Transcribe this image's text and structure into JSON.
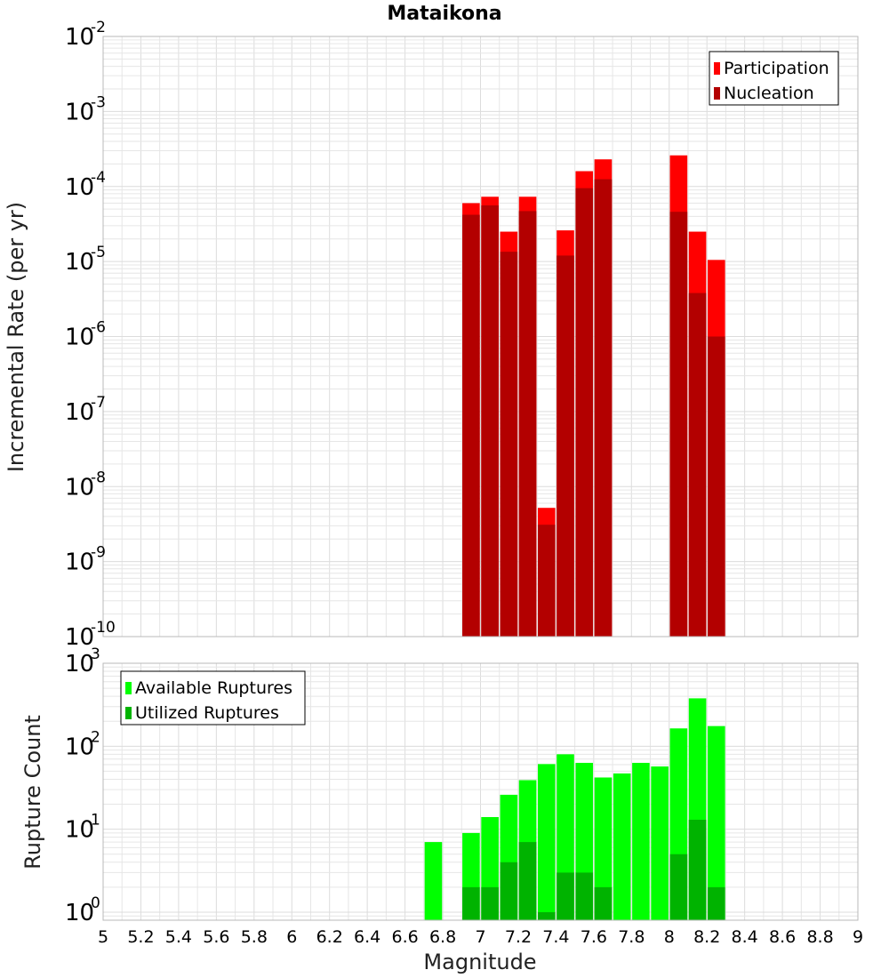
{
  "chart_data": [
    {
      "type": "bar",
      "title": "Mataikona",
      "xlabel": "",
      "ylabel": "Incremental Rate (per yr)",
      "yscale": "log",
      "ylim": [
        1e-10,
        0.01
      ],
      "xlim": [
        5,
        9
      ],
      "x": [
        6.95,
        7.05,
        7.15,
        7.25,
        7.35,
        7.45,
        7.55,
        7.65,
        8.05,
        8.15,
        8.25
      ],
      "series": [
        {
          "name": "Participation",
          "color": "#ff0000",
          "values": [
            6e-05,
            7.3e-05,
            2.5e-05,
            7.3e-05,
            5.2e-09,
            2.6e-05,
            0.00016,
            0.00023,
            0.00026,
            2.5e-05,
            1.05e-05
          ]
        },
        {
          "name": "Nucleation",
          "color": "#b30000",
          "values": [
            4.2e-05,
            5.6e-05,
            1.35e-05,
            4.7e-05,
            3.1e-09,
            1.2e-05,
            9.5e-05,
            0.000125,
            4.6e-05,
            3.8e-06,
            1e-06
          ]
        }
      ],
      "legend": "top-right",
      "grid": true
    },
    {
      "type": "bar",
      "xlabel": "Magnitude",
      "ylabel": "Rupture Count",
      "yscale": "log",
      "ylim": [
        0.8,
        1000
      ],
      "xlim": [
        5,
        9
      ],
      "x": [
        6.75,
        6.95,
        7.05,
        7.15,
        7.25,
        7.35,
        7.45,
        7.55,
        7.65,
        7.75,
        7.85,
        7.95,
        8.05,
        8.15,
        8.25
      ],
      "series": [
        {
          "name": "Available Ruptures",
          "color": "#00ff00",
          "values": [
            7,
            9,
            14,
            26,
            39,
            61,
            80,
            63,
            42,
            47,
            63,
            57,
            164,
            378,
            175
          ]
        },
        {
          "name": "Utilized Ruptures",
          "color": "#00b300",
          "values": [
            0,
            2,
            2,
            4,
            7,
            1,
            3,
            3,
            2,
            0,
            0,
            0,
            5,
            13,
            2
          ]
        }
      ],
      "xticks": [
        "5",
        "5.2",
        "5.4",
        "5.6",
        "5.8",
        "6",
        "6.2",
        "6.4",
        "6.6",
        "6.8",
        "7",
        "7.2",
        "7.4",
        "7.6",
        "7.8",
        "8",
        "8.2",
        "8.4",
        "8.6",
        "8.8",
        "9"
      ],
      "legend": "top-left",
      "grid": true
    }
  ]
}
